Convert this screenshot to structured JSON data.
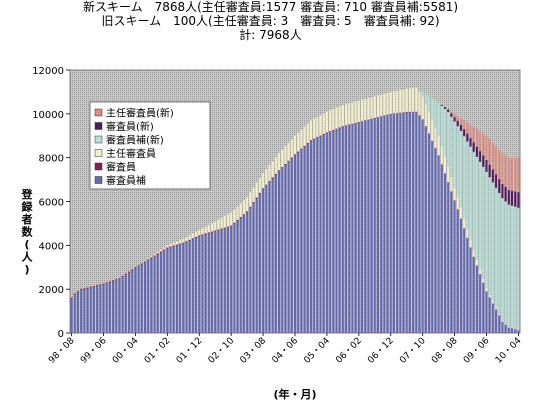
{
  "chart_data": {
    "type": "bar",
    "stacked": true,
    "title_lines": [
      "新スキーム　7868人(主任審査員:1577 審査員: 710 審査員補:5581)",
      "旧スキーム　100人(主任審査員: 3　審査員: 5　審査員補: 92)",
      "計: 7968人"
    ],
    "xlabel": "(年・月)",
    "ylabel": "登録者数(人)",
    "ylim": [
      0,
      12000
    ],
    "y_ticks": [
      0,
      2000,
      4000,
      6000,
      8000,
      10000,
      12000
    ],
    "x_tick_labels": [
      "98・08",
      "99・06",
      "00・04",
      "01・02",
      "01・12",
      "02・10",
      "03・08",
      "04・06",
      "05・04",
      "06・02",
      "06・12",
      "07・10",
      "08・08",
      "09・06",
      "10・04"
    ],
    "grid": false,
    "legend_position": "upper-left inside",
    "categories_note": "monthly, 98・08 to 10・04 (141 months)",
    "keyframes": {
      "note": "values at monthly indices (0 = 98・08); intermediate months interpolated",
      "total": [
        [
          0,
          1600
        ],
        [
          1,
          1800
        ],
        [
          3,
          2000
        ],
        [
          10,
          2250
        ],
        [
          15,
          2500
        ],
        [
          20,
          3000
        ],
        [
          25,
          3500
        ],
        [
          30,
          4000
        ],
        [
          35,
          4300
        ],
        [
          40,
          4700
        ],
        [
          45,
          5100
        ],
        [
          50,
          5500
        ],
        [
          55,
          6200
        ],
        [
          60,
          7300
        ],
        [
          65,
          8200
        ],
        [
          70,
          9000
        ],
        [
          75,
          9700
        ],
        [
          80,
          10100
        ],
        [
          85,
          10400
        ],
        [
          90,
          10600
        ],
        [
          95,
          10800
        ],
        [
          100,
          11000
        ],
        [
          105,
          11150
        ],
        [
          108,
          11200
        ],
        [
          110,
          11000
        ],
        [
          112,
          10800
        ],
        [
          115,
          10500
        ],
        [
          120,
          10000
        ],
        [
          125,
          9500
        ],
        [
          130,
          9000
        ],
        [
          135,
          8200
        ],
        [
          137,
          8000
        ],
        [
          140,
          8000
        ]
      ],
      "old_lead": [
        [
          0,
          0
        ],
        [
          20,
          0
        ],
        [
          30,
          100
        ],
        [
          40,
          250
        ],
        [
          50,
          600
        ],
        [
          60,
          700
        ],
        [
          70,
          850
        ],
        [
          80,
          950
        ],
        [
          100,
          1000
        ],
        [
          108,
          1100
        ],
        [
          112,
          1000
        ],
        [
          115,
          900
        ],
        [
          118,
          700
        ],
        [
          122,
          500
        ],
        [
          126,
          300
        ],
        [
          130,
          150
        ],
        [
          134,
          50
        ],
        [
          138,
          10
        ],
        [
          140,
          3
        ]
      ],
      "old_auditor": [
        [
          0,
          50
        ],
        [
          40,
          50
        ],
        [
          60,
          50
        ],
        [
          80,
          40
        ],
        [
          100,
          30
        ],
        [
          120,
          20
        ],
        [
          140,
          5
        ]
      ],
      "new_trainee": [
        [
          0,
          0
        ],
        [
          108,
          0
        ],
        [
          110,
          200
        ],
        [
          112,
          700
        ],
        [
          115,
          1500
        ],
        [
          118,
          2500
        ],
        [
          122,
          3500
        ],
        [
          126,
          4500
        ],
        [
          130,
          5300
        ],
        [
          135,
          5600
        ],
        [
          140,
          5581
        ]
      ],
      "new_auditor": [
        [
          0,
          0
        ],
        [
          115,
          0
        ],
        [
          120,
          200
        ],
        [
          125,
          400
        ],
        [
          130,
          550
        ],
        [
          135,
          650
        ],
        [
          140,
          710
        ]
      ],
      "new_lead": [
        [
          0,
          0
        ],
        [
          118,
          0
        ],
        [
          122,
          300
        ],
        [
          126,
          700
        ],
        [
          130,
          1100
        ],
        [
          135,
          1400
        ],
        [
          140,
          1577
        ]
      ]
    },
    "series": [
      {
        "name": "主任審査員(新)",
        "key": "new_lead",
        "color": "#e08a7e"
      },
      {
        "name": "審査員(新)",
        "key": "new_auditor",
        "color": "#55185e"
      },
      {
        "name": "審査員補(新)",
        "key": "new_trainee",
        "color": "#b4e0d8"
      },
      {
        "name": "主任審査員",
        "key": "old_lead",
        "color": "#f3f0c8"
      },
      {
        "name": "審査員",
        "key": "old_auditor",
        "color": "#8a1b53"
      },
      {
        "name": "審査員補",
        "key": "old_trainee",
        "color": "#6268b6"
      }
    ]
  }
}
